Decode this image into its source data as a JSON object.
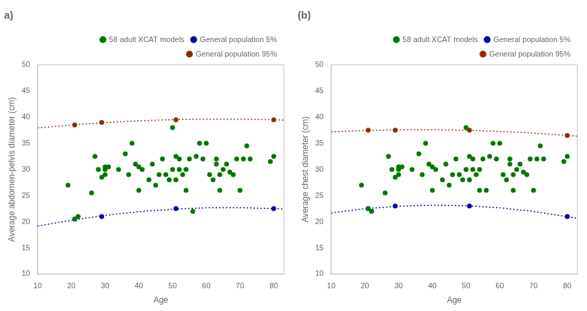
{
  "chart_data": [
    {
      "type": "scatter",
      "title": "a)",
      "x_label": "Age",
      "y_label": "Average abdomen-pelvis diameter (cm)",
      "xlim": [
        10,
        83
      ],
      "ylim": [
        10,
        50
      ],
      "xticks": [
        10,
        20,
        30,
        40,
        50,
        60,
        70,
        80
      ],
      "yticks": [
        10,
        15,
        20,
        25,
        30,
        35,
        40,
        45,
        50
      ],
      "grid": false,
      "legend": "upper right",
      "series": [
        {
          "name": "58 adult XCAT models",
          "type": "scatter",
          "marker": "o",
          "color": "#007700",
          "x": [
            19,
            21,
            22,
            26,
            27,
            28,
            29,
            30,
            30,
            30,
            31,
            34,
            36,
            37,
            38,
            39,
            40,
            40,
            41,
            43,
            44,
            45,
            46,
            47,
            48,
            49,
            50,
            50,
            51,
            51,
            52,
            52,
            53,
            54,
            54,
            55,
            56,
            57,
            58,
            59,
            60,
            61,
            62,
            63,
            63,
            64,
            64,
            65,
            66,
            67,
            68,
            69,
            70,
            71,
            72,
            73,
            79,
            80
          ],
          "values": [
            27,
            20.5,
            21,
            25.5,
            32.5,
            30,
            28.5,
            30.5,
            30,
            29,
            30.5,
            30,
            33,
            29,
            35,
            31,
            30.5,
            26,
            30,
            28,
            31,
            27,
            29,
            32,
            29,
            28,
            38,
            30,
            32.5,
            28,
            30,
            32,
            29,
            30,
            26,
            32,
            22,
            32.5,
            35,
            32,
            35,
            29,
            28,
            32,
            31,
            29,
            26,
            30,
            31,
            29.5,
            29,
            32,
            26,
            32,
            34.5,
            32,
            31.5,
            32.5
          ]
        },
        {
          "name": "General population 5%",
          "type": "scatter",
          "marker": "o",
          "color": "#0000AA",
          "x": [
            21,
            29,
            51,
            80
          ],
          "values": [
            20.5,
            21.0,
            22.5,
            22.5
          ]
        },
        {
          "name": "General population 95%",
          "type": "scatter",
          "marker": "o",
          "color": "#8B3000",
          "x": [
            21,
            29,
            51,
            80
          ],
          "values": [
            38.5,
            39.0,
            39.5,
            39.5
          ]
        },
        {
          "type": "line",
          "line_style": "dotted",
          "color": "#0000AA",
          "x": [
            10,
            20,
            30,
            40,
            50,
            60,
            70,
            80,
            83
          ],
          "values": [
            19.17,
            20.31,
            21.22,
            21.92,
            22.4,
            22.66,
            22.69,
            22.51,
            22.42
          ]
        },
        {
          "type": "line",
          "line_style": "dotted",
          "color": "#8B3000",
          "x": [
            10,
            20,
            30,
            40,
            50,
            60,
            70,
            80,
            83
          ],
          "values": [
            37.93,
            38.5,
            38.96,
            39.3,
            39.52,
            39.63,
            39.62,
            39.49,
            39.43
          ]
        }
      ]
    },
    {
      "type": "scatter",
      "title": "(b)",
      "x_label": "Age",
      "y_label": "Average chest diameter (cm)",
      "xlim": [
        10,
        83
      ],
      "ylim": [
        10,
        50
      ],
      "xticks": [
        10,
        20,
        30,
        40,
        50,
        60,
        70,
        80
      ],
      "yticks": [
        10,
        15,
        20,
        25,
        30,
        35,
        40,
        45,
        50
      ],
      "grid": false,
      "legend": "upper right",
      "series": [
        {
          "name": "58 adult XCAT models",
          "type": "scatter",
          "marker": "o",
          "color": "#007700",
          "x": [
            19,
            21,
            22,
            26,
            27,
            28,
            29,
            30,
            30,
            30,
            31,
            34,
            36,
            37,
            38,
            39,
            40,
            40,
            41,
            43,
            44,
            45,
            46,
            47,
            48,
            49,
            50,
            50,
            51,
            51,
            52,
            52,
            53,
            54,
            54,
            55,
            56,
            57,
            58,
            59,
            60,
            61,
            62,
            63,
            63,
            64,
            64,
            65,
            66,
            67,
            68,
            69,
            70,
            71,
            72,
            73,
            79,
            80
          ],
          "values": [
            27,
            22.5,
            22,
            25.5,
            32.5,
            30,
            28.5,
            30.5,
            30,
            29,
            30.5,
            30,
            33,
            29,
            35,
            31,
            30.5,
            26,
            30,
            28,
            31,
            27,
            29,
            32,
            29,
            28,
            38,
            30,
            32.5,
            28,
            30,
            32,
            29,
            30,
            26,
            32,
            26,
            32.5,
            35,
            32,
            35,
            29,
            28,
            32,
            31,
            29,
            26,
            30,
            31,
            29.5,
            29,
            32,
            26,
            32,
            34.5,
            32,
            31.5,
            32.5
          ]
        },
        {
          "name": "General population 5%",
          "type": "scatter",
          "marker": "o",
          "color": "#0000AA",
          "x": [
            21,
            29,
            51,
            80
          ],
          "values": [
            22.5,
            23.0,
            23.0,
            21.0
          ]
        },
        {
          "name": "General population 95%",
          "type": "scatter",
          "marker": "o",
          "color": "#8B3000",
          "x": [
            21,
            29,
            51,
            80
          ],
          "values": [
            37.5,
            37.5,
            37.5,
            36.5
          ]
        },
        {
          "type": "line",
          "line_style": "dotted",
          "color": "#0000AA",
          "x": [
            10,
            20,
            30,
            40,
            50,
            60,
            70,
            80,
            83
          ],
          "values": [
            21.7,
            22.48,
            22.97,
            23.16,
            23.06,
            22.66,
            21.97,
            20.99,
            20.64
          ]
        },
        {
          "type": "line",
          "line_style": "dotted",
          "color": "#8B3000",
          "x": [
            10,
            20,
            30,
            40,
            50,
            60,
            70,
            80,
            83
          ],
          "values": [
            37.2,
            37.44,
            37.57,
            37.59,
            37.49,
            37.27,
            36.95,
            36.51,
            36.35
          ]
        }
      ]
    }
  ]
}
